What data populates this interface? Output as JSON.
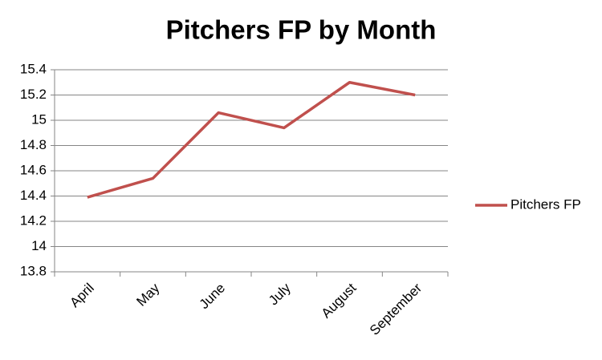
{
  "chart_data": {
    "type": "line",
    "title": "Pitchers FP by Month",
    "categories": [
      "April",
      "May",
      "June",
      "July",
      "August",
      "September"
    ],
    "series": [
      {
        "name": "Pitchers FP",
        "color": "#c0504d",
        "values": [
          14.39,
          14.54,
          15.06,
          14.94,
          15.3,
          15.2
        ]
      }
    ],
    "ylim": [
      13.8,
      15.4
    ],
    "yticks": [
      13.8,
      14,
      14.2,
      14.4,
      14.6,
      14.8,
      15,
      15.2,
      15.4
    ],
    "grid": true,
    "legend": "right"
  }
}
